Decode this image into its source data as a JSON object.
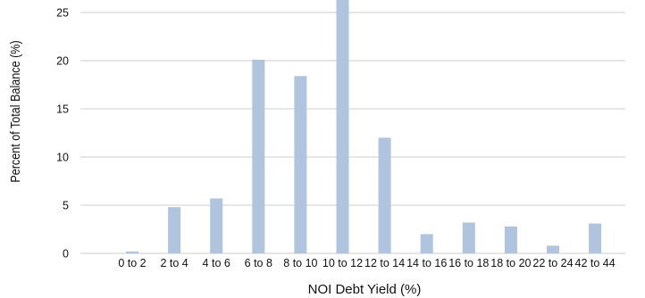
{
  "chart_data": {
    "type": "bar",
    "title": "",
    "xlabel": "NOI Debt Yield (%)",
    "ylabel": "Percent of Total Balance (%)",
    "categories": [
      "0 to 2",
      "2 to 4",
      "4 to 6",
      "6 to 8",
      "8 to 10",
      "10 to 12",
      "12 to 14",
      "14 to 16",
      "16 to 18",
      "18 to 20",
      "22 to 24",
      "42 to 44"
    ],
    "values": [
      0.2,
      4.8,
      5.7,
      20.1,
      18.4,
      26.5,
      12.0,
      2.0,
      3.2,
      2.8,
      0.8,
      3.1
    ],
    "ylim": [
      0,
      26.3
    ],
    "yticks": [
      0,
      5,
      10,
      15,
      20,
      25
    ],
    "grid": true,
    "bar_color": "#b0c4de",
    "grid_color": "#cccccc"
  }
}
